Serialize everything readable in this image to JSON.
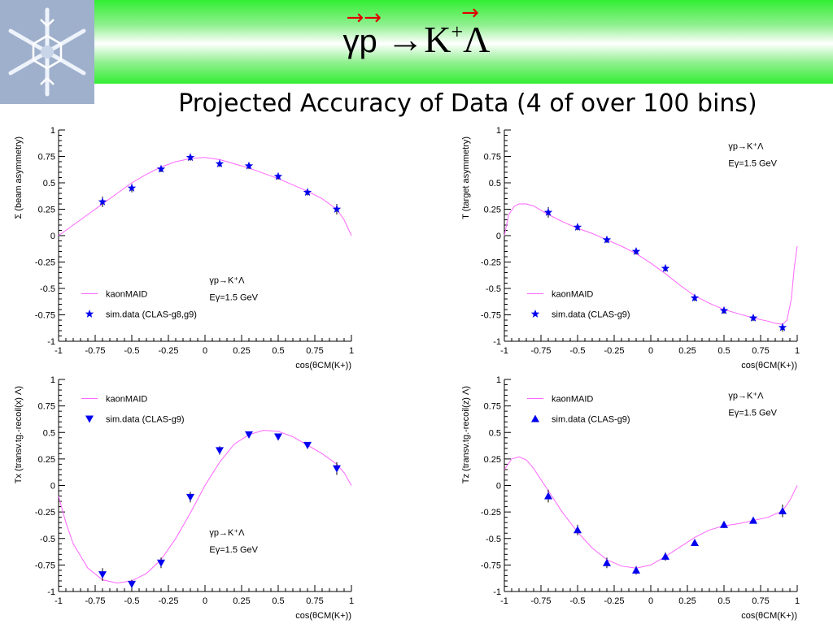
{
  "header": {
    "title_main": "γp",
    "title_arrow": "→",
    "title_k": "K",
    "title_plus": "+",
    "title_lambda": "Λ",
    "subtitle": "Projected Accuracy of Data (4 of over 100 bins)"
  },
  "colors": {
    "curve": "#ff66ff",
    "data": "#0000ee",
    "band_green": "#33ee33",
    "accent_red": "#e00000"
  },
  "chart_data": [
    {
      "type": "line",
      "id": "sigma",
      "ylabel": "Σ     (beam asymmetry)",
      "xlabel": "cos(θCM(K+))",
      "xlim": [
        -1,
        1
      ],
      "ylim": [
        -1,
        1
      ],
      "xticks": [
        "-1",
        "-0.75",
        "-0.5",
        "-0.25",
        "0",
        "0.25",
        "0.5",
        "0.75",
        "1"
      ],
      "yticks": [
        "1",
        "0.75",
        "0.5",
        "0.25",
        "0",
        "-0.25",
        "-0.5",
        "-0.75",
        "-1"
      ],
      "marker": "star",
      "legend": [
        "kaonMAID",
        "sim.data (CLAS-g8,g9)"
      ],
      "annotation": [
        "γp→K⁺Λ",
        "Eγ=1.5 GeV"
      ],
      "series": [
        {
          "name": "kaonMAID",
          "x": [
            -1,
            -0.9,
            -0.8,
            -0.7,
            -0.6,
            -0.5,
            -0.4,
            -0.3,
            -0.2,
            -0.1,
            0,
            0.1,
            0.2,
            0.3,
            0.4,
            0.5,
            0.6,
            0.7,
            0.8,
            0.9,
            0.95,
            1
          ],
          "y": [
            0.0,
            0.1,
            0.2,
            0.3,
            0.4,
            0.5,
            0.58,
            0.65,
            0.7,
            0.73,
            0.74,
            0.72,
            0.68,
            0.64,
            0.59,
            0.54,
            0.48,
            0.42,
            0.35,
            0.25,
            0.15,
            0.0
          ]
        },
        {
          "name": "sim.data (CLAS-g8,g9)",
          "x": [
            -0.7,
            -0.5,
            -0.3,
            -0.1,
            0.1,
            0.3,
            0.5,
            0.7,
            0.9
          ],
          "y": [
            0.32,
            0.45,
            0.63,
            0.74,
            0.68,
            0.66,
            0.56,
            0.41,
            0.25
          ],
          "err": [
            0.05,
            0.04,
            0.03,
            0.03,
            0.03,
            0.03,
            0.03,
            0.03,
            0.05
          ]
        }
      ]
    },
    {
      "type": "line",
      "id": "T",
      "ylabel": "T     (target asymmetry)",
      "xlabel": "cos(θCM(K+))",
      "xlim": [
        -1,
        1
      ],
      "ylim": [
        -1,
        1
      ],
      "xticks": [
        "-1",
        "-0.75",
        "-0.5",
        "-0.25",
        "0",
        "0.25",
        "0.5",
        "0.75",
        "1"
      ],
      "yticks": [
        "1",
        "0.75",
        "0.5",
        "0.25",
        "0",
        "-0.25",
        "-0.5",
        "-0.75",
        "-1"
      ],
      "marker": "star",
      "legend": [
        "kaonMAID",
        "sim.data (CLAS-g9)"
      ],
      "annotation": [
        "γp→K⁺Λ",
        "Eγ=1.5 GeV"
      ],
      "series": [
        {
          "name": "kaonMAID",
          "x": [
            -1,
            -0.97,
            -0.93,
            -0.9,
            -0.85,
            -0.8,
            -0.7,
            -0.6,
            -0.5,
            -0.4,
            -0.3,
            -0.2,
            -0.1,
            0,
            0.1,
            0.2,
            0.3,
            0.4,
            0.5,
            0.6,
            0.7,
            0.8,
            0.85,
            0.9,
            0.93,
            0.96,
            0.98,
            1
          ],
          "y": [
            0.0,
            0.2,
            0.28,
            0.3,
            0.3,
            0.28,
            0.2,
            0.13,
            0.07,
            0.02,
            -0.04,
            -0.1,
            -0.17,
            -0.26,
            -0.36,
            -0.47,
            -0.57,
            -0.64,
            -0.7,
            -0.74,
            -0.78,
            -0.81,
            -0.83,
            -0.84,
            -0.8,
            -0.6,
            -0.3,
            -0.1
          ]
        },
        {
          "name": "sim.data (CLAS-g9)",
          "x": [
            -0.7,
            -0.5,
            -0.3,
            -0.1,
            0.1,
            0.3,
            0.5,
            0.7,
            0.9
          ],
          "y": [
            0.22,
            0.08,
            -0.04,
            -0.15,
            -0.31,
            -0.59,
            -0.71,
            -0.78,
            -0.87
          ],
          "err": [
            0.05,
            0.03,
            0.03,
            0.03,
            0.03,
            0.03,
            0.03,
            0.03,
            0.04
          ]
        }
      ]
    },
    {
      "type": "line",
      "id": "Tx",
      "ylabel": "Tx  (transv.tg.-recoil(x) Λ)",
      "xlabel": "cos(θCM(K+))",
      "xlim": [
        -1,
        1
      ],
      "ylim": [
        -1,
        1
      ],
      "xticks": [
        "-1",
        "-0.75",
        "-0.5",
        "-0.25",
        "0",
        "0.25",
        "0.5",
        "0.75",
        "1"
      ],
      "yticks": [
        "1",
        "0.75",
        "0.5",
        "0.25",
        "0",
        "-0.25",
        "-0.5",
        "-0.75",
        "-1"
      ],
      "marker": "triangle-down",
      "legend": [
        "kaonMAID",
        "sim.data (CLAS-g9)"
      ],
      "annotation": [
        "γp→K⁺Λ",
        "Eγ=1.5 GeV"
      ],
      "series": [
        {
          "name": "kaonMAID",
          "x": [
            -1,
            -0.95,
            -0.9,
            -0.8,
            -0.7,
            -0.6,
            -0.5,
            -0.4,
            -0.3,
            -0.2,
            -0.1,
            0,
            0.1,
            0.2,
            0.3,
            0.4,
            0.5,
            0.6,
            0.7,
            0.8,
            0.9,
            0.95,
            1
          ],
          "y": [
            -0.1,
            -0.35,
            -0.55,
            -0.78,
            -0.89,
            -0.92,
            -0.9,
            -0.83,
            -0.7,
            -0.5,
            -0.26,
            0.0,
            0.22,
            0.39,
            0.48,
            0.52,
            0.51,
            0.46,
            0.38,
            0.3,
            0.2,
            0.12,
            0.0
          ]
        },
        {
          "name": "sim.data (CLAS-g9)",
          "x": [
            -0.7,
            -0.5,
            -0.3,
            -0.1,
            0.1,
            0.3,
            0.5,
            0.7,
            0.9
          ],
          "y": [
            -0.84,
            -0.93,
            -0.73,
            -0.11,
            0.33,
            0.48,
            0.46,
            0.38,
            0.16
          ],
          "err": [
            0.06,
            0.04,
            0.05,
            0.05,
            0.04,
            0.03,
            0.03,
            0.03,
            0.06
          ]
        }
      ]
    },
    {
      "type": "line",
      "id": "Tz",
      "ylabel": "Tz  (transv.tg.-recoil(z) Λ)",
      "xlabel": "cos(θCM(K+))",
      "xlim": [
        -1,
        1
      ],
      "ylim": [
        -1,
        1
      ],
      "xticks": [
        "-1",
        "-0.75",
        "-0.5",
        "-0.25",
        "0",
        "0.25",
        "0.5",
        "0.75",
        "1"
      ],
      "yticks": [
        "1",
        "0.75",
        "0.5",
        "0.25",
        "0",
        "-0.25",
        "-0.5",
        "-0.75",
        "-1"
      ],
      "marker": "triangle-up",
      "legend": [
        "kaonMAID",
        "sim.data (CLAS-g9)"
      ],
      "annotation": [
        "γp→K⁺Λ",
        "Eγ=1.5 GeV"
      ],
      "series": [
        {
          "name": "kaonMAID",
          "x": [
            -1,
            -0.95,
            -0.9,
            -0.85,
            -0.8,
            -0.7,
            -0.6,
            -0.5,
            -0.4,
            -0.3,
            -0.2,
            -0.1,
            0,
            0.1,
            0.2,
            0.3,
            0.4,
            0.5,
            0.6,
            0.7,
            0.8,
            0.9,
            0.95,
            1
          ],
          "y": [
            0.15,
            0.25,
            0.27,
            0.24,
            0.16,
            -0.05,
            -0.26,
            -0.44,
            -0.59,
            -0.7,
            -0.76,
            -0.78,
            -0.75,
            -0.67,
            -0.58,
            -0.49,
            -0.42,
            -0.38,
            -0.36,
            -0.33,
            -0.3,
            -0.24,
            -0.14,
            0.0
          ]
        },
        {
          "name": "sim.data (CLAS-g9)",
          "x": [
            -0.7,
            -0.5,
            -0.3,
            -0.1,
            0.1,
            0.3,
            0.5,
            0.7,
            0.9
          ],
          "y": [
            -0.1,
            -0.42,
            -0.73,
            -0.8,
            -0.67,
            -0.54,
            -0.37,
            -0.33,
            -0.24
          ],
          "err": [
            0.06,
            0.05,
            0.05,
            0.04,
            0.04,
            0.03,
            0.03,
            0.03,
            0.06
          ]
        }
      ]
    }
  ]
}
